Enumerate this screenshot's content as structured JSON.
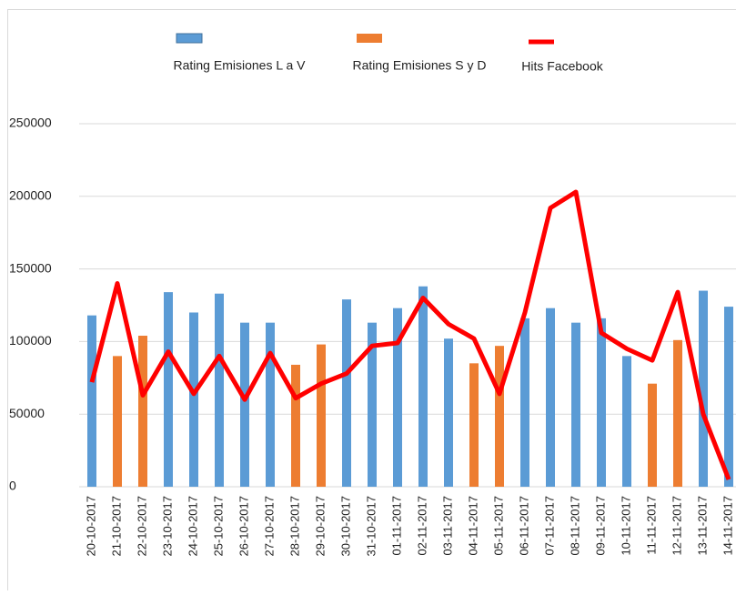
{
  "chart_data": {
    "type": "bar-line",
    "categories": [
      "20-10-2017",
      "21-10-2017",
      "22-10-2017",
      "23-10-2017",
      "24-10-2017",
      "25-10-2017",
      "26-10-2017",
      "27-10-2017",
      "28-10-2017",
      "29-10-2017",
      "30-10-2017",
      "31-10-2017",
      "01-11-2017",
      "02-11-2017",
      "03-11-2017",
      "04-11-2017",
      "05-11-2017",
      "06-11-2017",
      "07-11-2017",
      "08-11-2017",
      "09-11-2017",
      "10-11-2017",
      "11-11-2017",
      "12-11-2017",
      "13-11-2017",
      "14-11-2017"
    ],
    "series": [
      {
        "name": "Rating Emisiones L a V",
        "type": "bar",
        "color": "#5b9bd5",
        "values": [
          118000,
          null,
          null,
          134000,
          120000,
          133000,
          113000,
          113000,
          null,
          null,
          129000,
          113000,
          123000,
          138000,
          102000,
          null,
          null,
          116000,
          123000,
          113000,
          116000,
          90000,
          null,
          null,
          135000,
          124000
        ]
      },
      {
        "name": "Rating Emisiones S y D",
        "type": "bar",
        "color": "#ed7d31",
        "values": [
          null,
          90000,
          104000,
          null,
          null,
          null,
          null,
          null,
          84000,
          98000,
          null,
          null,
          null,
          null,
          null,
          85000,
          97000,
          null,
          null,
          null,
          null,
          null,
          71000,
          101000,
          null,
          null
        ]
      },
      {
        "name": "Hits Facebook",
        "type": "line",
        "color": "#ff0000",
        "values": [
          72000,
          140000,
          63000,
          93000,
          64000,
          90000,
          60000,
          92000,
          61000,
          71000,
          78000,
          97000,
          99000,
          130000,
          112000,
          102000,
          64000,
          120000,
          192000,
          203000,
          106000,
          95000,
          87000,
          134000,
          50000,
          5000
        ]
      }
    ],
    "ylim": [
      0,
      250000
    ],
    "yticks": [
      0,
      50000,
      100000,
      150000,
      200000,
      250000
    ],
    "grid": true
  }
}
